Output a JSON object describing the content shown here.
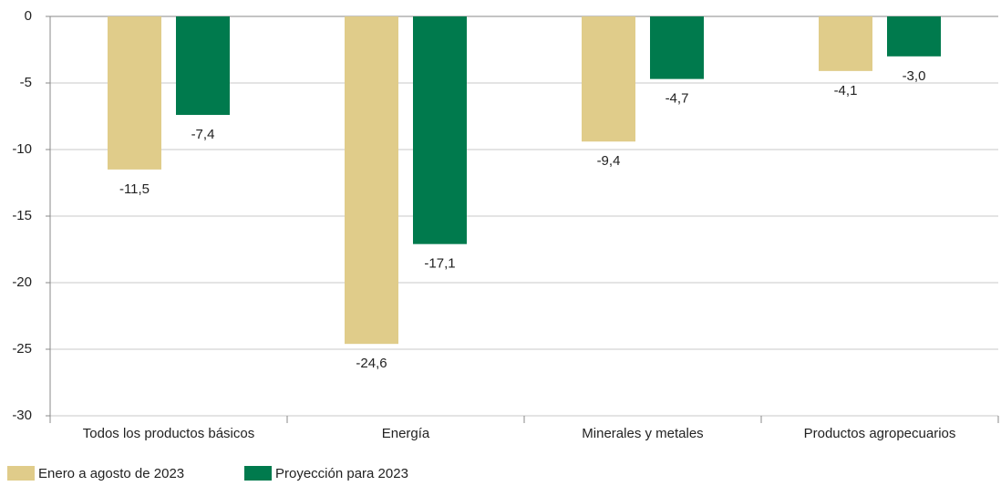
{
  "chart_data": {
    "type": "bar",
    "categories": [
      "Todos los productos básicos",
      "Energía",
      "Minerales y metales",
      "Productos agropecuarios"
    ],
    "series": [
      {
        "name": "Enero a agosto de 2023",
        "color": "#e0cc8a",
        "values": [
          -11.5,
          -24.6,
          -9.4,
          -4.1
        ],
        "value_labels": [
          "-11,5",
          "-24,6",
          "-9,4",
          "-4,1"
        ]
      },
      {
        "name": "Proyección para 2023",
        "color": "#007a4d",
        "values": [
          -7.4,
          -17.1,
          -4.7,
          -3.0
        ],
        "value_labels": [
          "-7,4",
          "-17,1",
          "-4,7",
          "-3,0"
        ]
      }
    ],
    "ylim": [
      -30,
      0
    ],
    "yticks": [
      0,
      -5,
      -10,
      -15,
      -20,
      -25,
      -30
    ],
    "grid": true,
    "legend": "bottom-left"
  }
}
